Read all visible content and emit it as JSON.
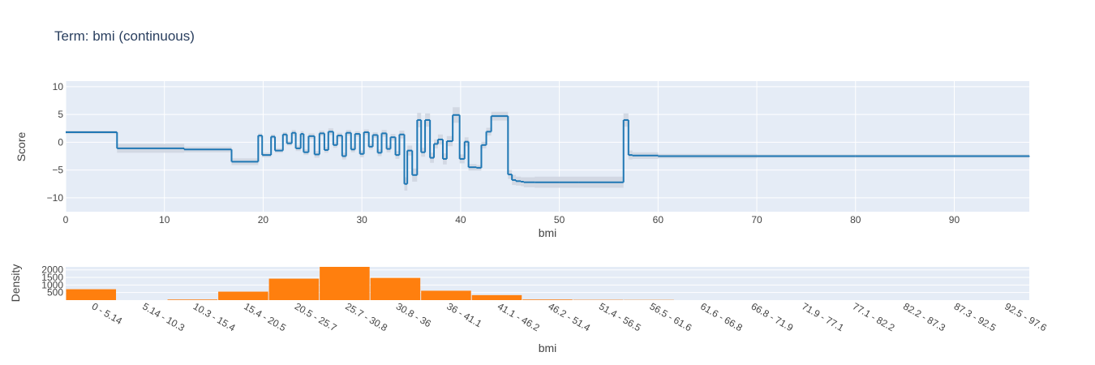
{
  "title": "Term: bmi (continuous)",
  "colors": {
    "line": "#1f77b4",
    "band": "#cfd6e1",
    "bar": "#ff7f0e",
    "plot_bg": "#e5ecf6",
    "grid": "#ffffff"
  },
  "chart_data": [
    {
      "type": "line",
      "shape": "step",
      "xlabel": "bmi",
      "ylabel": "Score",
      "xlim": [
        0,
        97.6
      ],
      "ylim": [
        -12.5,
        11
      ],
      "xticks": [
        0,
        10,
        20,
        30,
        40,
        50,
        60,
        70,
        80,
        90
      ],
      "yticks": [
        -10,
        -5,
        0,
        5,
        10
      ],
      "ytick_labels": [
        "−10",
        "−5",
        "0",
        "5",
        "10"
      ],
      "grid": true,
      "legend": "none",
      "x": [
        0,
        5.2,
        12,
        16.8,
        19.5,
        19.9,
        20.8,
        21.2,
        22,
        22.4,
        22.9,
        23.3,
        23.8,
        24.1,
        24.6,
        25.2,
        25.7,
        26.2,
        26.6,
        27.1,
        27.5,
        28,
        28.4,
        28.9,
        29.3,
        29.8,
        30.2,
        30.7,
        31.1,
        31.6,
        32,
        32.5,
        32.9,
        33.4,
        33.8,
        34.3,
        34.6,
        35.1,
        35.6,
        36,
        36.4,
        36.9,
        37.3,
        37.7,
        38.2,
        38.6,
        39.2,
        39.9,
        40.4,
        40.8,
        41.6,
        42.1,
        42.6,
        43.1,
        44.8,
        45.2,
        45.6,
        46.1,
        46.4,
        47.5,
        50,
        52,
        56.5,
        57,
        57.4,
        60,
        70,
        80,
        90,
        97.6
      ],
      "y": [
        1.8,
        -1.1,
        -1.3,
        -3.5,
        1.2,
        -2.3,
        1,
        -1.5,
        1.4,
        -0.2,
        1.7,
        -1.1,
        1.5,
        -1.8,
        1.1,
        -2.2,
        1.6,
        -1.4,
        1.9,
        -0.5,
        1.2,
        -2.5,
        1.7,
        -1.3,
        1.5,
        -2.1,
        1.8,
        -0.8,
        1.3,
        -1.9,
        1.6,
        -1.2,
        0.9,
        -2.3,
        1.4,
        -7.5,
        -1.5,
        -5.9,
        4,
        -1.8,
        4,
        -2.8,
        -0.3,
        0.5,
        -3,
        0.2,
        4.9,
        -3,
        0.1,
        -4.5,
        -4.6,
        -0.5,
        1.9,
        4.7,
        -5.8,
        -6.8,
        -7,
        -7.1,
        -7.2,
        -7.2,
        -7.2,
        -7.2,
        4,
        -2.3,
        -2.4,
        -2.5,
        -2.5,
        -2.5,
        -2.5,
        -2.6
      ],
      "band_width": [
        0.3,
        0.8,
        0.5,
        0.6,
        0.4,
        0.4,
        0.4,
        0.4,
        0.4,
        0.4,
        0.5,
        0.5,
        0.5,
        0.5,
        0.5,
        0.6,
        0.5,
        0.5,
        0.6,
        0.5,
        0.5,
        0.6,
        0.5,
        0.5,
        0.5,
        0.6,
        0.5,
        0.5,
        0.5,
        0.6,
        0.6,
        0.6,
        0.6,
        0.7,
        0.7,
        1.2,
        0.9,
        1.2,
        1.3,
        0.8,
        1.2,
        0.9,
        0.8,
        0.9,
        1,
        0.9,
        1.4,
        0.8,
        0.8,
        0.6,
        0.5,
        0.6,
        0.7,
        0.8,
        0.8,
        0.9,
        0.8,
        0.8,
        0.9,
        1,
        1,
        1,
        1.2,
        0.8,
        0.6,
        0.4,
        0.3,
        0.3,
        0.3,
        0.3
      ]
    },
    {
      "type": "bar",
      "xlabel": "bmi",
      "ylabel": "Density",
      "ylim": [
        0,
        2200
      ],
      "yticks": [
        500,
        1000,
        1500,
        2000
      ],
      "ytick_labels": [
        "500",
        "1000",
        "1500",
        "2000"
      ],
      "grid": true,
      "legend": "none",
      "categories": [
        "0 - 5.14",
        "5.14 - 10.3",
        "10.3 - 15.4",
        "15.4 - 20.5",
        "20.5 - 25.7",
        "25.7 - 30.8",
        "30.8 - 36",
        "36 - 41.1",
        "41.1 - 46.2",
        "46.2 - 51.4",
        "51.4 - 56.5",
        "56.5 - 61.6",
        "61.6 - 66.8",
        "66.8 - 71.9",
        "71.9 - 77.1",
        "77.1 - 82.2",
        "82.2 - 87.3",
        "87.3 - 92.5",
        "92.5 - 97.6"
      ],
      "values": [
        720,
        0,
        40,
        560,
        1420,
        2200,
        1470,
        620,
        330,
        40,
        20,
        15,
        0,
        0,
        0,
        0,
        0,
        0,
        0
      ]
    }
  ]
}
